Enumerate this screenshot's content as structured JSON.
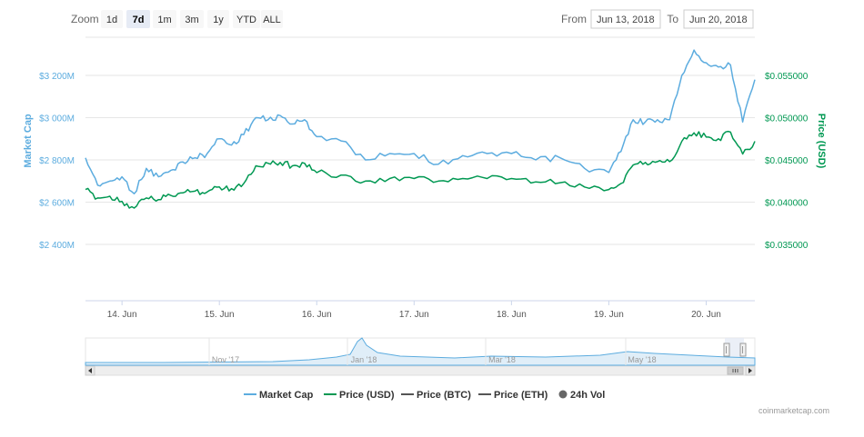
{
  "range_selector": {
    "zoom_label": "Zoom",
    "buttons": [
      "1d",
      "7d",
      "1m",
      "3m",
      "1y",
      "YTD",
      "ALL"
    ],
    "selected": "7d",
    "from_label": "From",
    "from_value": "Jun 13, 2018",
    "to_label": "To",
    "to_value": "Jun 20, 2018"
  },
  "credit": "coinmarketcap.com",
  "colors": {
    "market_cap": "#5CACDF",
    "price_usd": "#009852",
    "price_btc": "#555555",
    "price_eth": "#555555",
    "vol": "#666666",
    "grid": "#e6e6e6"
  },
  "chart_data": {
    "type": "line",
    "x_axis": {
      "tick_labels": [
        "14. Jun",
        "15. Jun",
        "16. Jun",
        "17. Jun",
        "18. Jun",
        "19. Jun",
        "20. Jun"
      ],
      "range": [
        "2018-06-13 15:00",
        "2018-06-20 12:00"
      ]
    },
    "y_axis_left": {
      "label": "Market Cap",
      "tick_labels": [
        "$2 400M",
        "$2 600M",
        "$2 800M",
        "$3 000M",
        "$3 200M"
      ],
      "tick_values": [
        2400,
        2600,
        2800,
        3000,
        3200
      ],
      "unit": "M USD"
    },
    "y_axis_right": {
      "label": "Price (USD)",
      "tick_labels": [
        "$0.035000",
        "$0.040000",
        "$0.045000",
        "$0.050000",
        "$0.055000"
      ],
      "tick_values": [
        0.035,
        0.04,
        0.045,
        0.05,
        0.055
      ]
    },
    "grid": true,
    "legend_placement": "bottom-center",
    "legend": [
      "Market Cap",
      "Price (USD)",
      "Price (BTC)",
      "Price (ETH)",
      "24h Vol"
    ],
    "series": [
      {
        "name": "Market Cap",
        "axis": "left",
        "x": [
          "2018-06-13 15:00",
          "2018-06-13 18:00",
          "2018-06-13 21:00",
          "2018-06-14 00:00",
          "2018-06-14 03:00",
          "2018-06-14 06:00",
          "2018-06-14 09:00",
          "2018-06-14 12:00",
          "2018-06-14 15:00",
          "2018-06-14 18:00",
          "2018-06-14 21:00",
          "2018-06-15 00:00",
          "2018-06-15 03:00",
          "2018-06-15 06:00",
          "2018-06-15 09:00",
          "2018-06-15 12:00",
          "2018-06-15 15:00",
          "2018-06-15 18:00",
          "2018-06-15 21:00",
          "2018-06-16 00:00",
          "2018-06-16 06:00",
          "2018-06-16 12:00",
          "2018-06-16 18:00",
          "2018-06-17 00:00",
          "2018-06-17 06:00",
          "2018-06-17 12:00",
          "2018-06-17 18:00",
          "2018-06-18 00:00",
          "2018-06-18 06:00",
          "2018-06-18 12:00",
          "2018-06-18 18:00",
          "2018-06-19 00:00",
          "2018-06-19 03:00",
          "2018-06-19 06:00",
          "2018-06-19 09:00",
          "2018-06-19 12:00",
          "2018-06-19 15:00",
          "2018-06-19 18:00",
          "2018-06-19 21:00",
          "2018-06-20 00:00",
          "2018-06-20 03:00",
          "2018-06-20 06:00",
          "2018-06-20 09:00",
          "2018-06-20 12:00"
        ],
        "values": [
          2810,
          2680,
          2700,
          2720,
          2640,
          2760,
          2720,
          2750,
          2790,
          2810,
          2830,
          2900,
          2870,
          2920,
          3000,
          2990,
          3010,
          2970,
          2990,
          2910,
          2890,
          2800,
          2830,
          2830,
          2780,
          2820,
          2830,
          2830,
          2800,
          2810,
          2760,
          2740,
          2840,
          2990,
          2980,
          2990,
          2990,
          3200,
          3320,
          3260,
          3240,
          3250,
          2980,
          3180
        ]
      },
      {
        "name": "Price (USD)",
        "axis": "right",
        "x": [
          "2018-06-13 15:00",
          "2018-06-13 18:00",
          "2018-06-13 21:00",
          "2018-06-14 00:00",
          "2018-06-14 03:00",
          "2018-06-14 06:00",
          "2018-06-14 09:00",
          "2018-06-14 12:00",
          "2018-06-14 15:00",
          "2018-06-14 18:00",
          "2018-06-14 21:00",
          "2018-06-15 00:00",
          "2018-06-15 03:00",
          "2018-06-15 06:00",
          "2018-06-15 09:00",
          "2018-06-15 12:00",
          "2018-06-15 15:00",
          "2018-06-15 18:00",
          "2018-06-15 21:00",
          "2018-06-16 00:00",
          "2018-06-16 06:00",
          "2018-06-16 12:00",
          "2018-06-16 18:00",
          "2018-06-17 00:00",
          "2018-06-17 06:00",
          "2018-06-17 12:00",
          "2018-06-17 18:00",
          "2018-06-18 00:00",
          "2018-06-18 06:00",
          "2018-06-18 12:00",
          "2018-06-18 18:00",
          "2018-06-19 00:00",
          "2018-06-19 03:00",
          "2018-06-19 06:00",
          "2018-06-19 09:00",
          "2018-06-19 12:00",
          "2018-06-19 15:00",
          "2018-06-19 18:00",
          "2018-06-19 21:00",
          "2018-06-20 00:00",
          "2018-06-20 03:00",
          "2018-06-20 06:00",
          "2018-06-20 09:00",
          "2018-06-20 12:00"
        ],
        "values": [
          0.0415,
          0.0405,
          0.0407,
          0.0401,
          0.0393,
          0.0405,
          0.0403,
          0.0408,
          0.0411,
          0.0413,
          0.0412,
          0.0418,
          0.0416,
          0.0422,
          0.0443,
          0.0446,
          0.0447,
          0.0443,
          0.0446,
          0.0435,
          0.0432,
          0.0425,
          0.0428,
          0.0428,
          0.0425,
          0.0428,
          0.0428,
          0.0428,
          0.0424,
          0.0423,
          0.0418,
          0.0415,
          0.0422,
          0.0444,
          0.0447,
          0.0448,
          0.0448,
          0.0472,
          0.0482,
          0.0477,
          0.0475,
          0.0483,
          0.0457,
          0.0472
        ]
      }
    ],
    "navigator": {
      "tick_labels": [
        "Nov '17",
        "Jan '18",
        "Mar '18",
        "May '18"
      ]
    }
  }
}
